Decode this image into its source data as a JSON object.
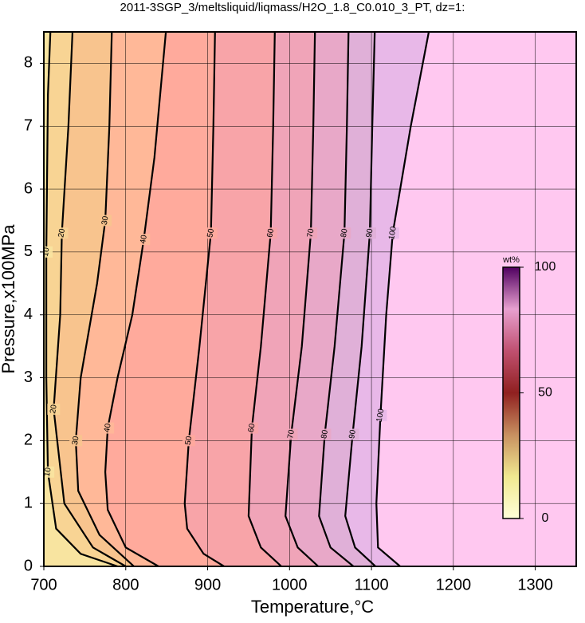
{
  "chart_data": {
    "type": "contour",
    "title": "2011-3SGP_3/meltsliquid/liqmass/H2O_1.8_C0.010_3_PT, dz=1:",
    "x_label": "Temperature,°C",
    "y_label": "Pressure,x100MPa",
    "xlim": [
      700,
      1350
    ],
    "ylim": [
      0,
      8.5
    ],
    "xticks": [
      700,
      800,
      900,
      1000,
      1100,
      1200,
      1300
    ],
    "yticks": [
      0,
      1,
      2,
      3,
      4,
      5,
      6,
      7,
      8
    ],
    "grid": true,
    "line_color": "#000000",
    "background": "#ffc8f0",
    "band_colors": [
      "#f8e4a0",
      "#f8d494",
      "#f8c48e",
      "#ffb898",
      "#ffaa9c",
      "#f8a4a8",
      "#f0a4b8",
      "#e8a8c8",
      "#e0b0d8",
      "#e8b8e8",
      "#ffc8f0"
    ],
    "series": [
      {
        "level": 10,
        "x": [
          790,
          745,
          715,
          705,
          703,
          703,
          705,
          708
        ],
        "values": [
          0,
          0.2,
          0.6,
          1.5,
          3,
          5,
          7.5,
          8.5
        ]
      },
      {
        "level": 20,
        "x": [
          800,
          760,
          725,
          712,
          720,
          722,
          730,
          735
        ],
        "values": [
          0,
          0.3,
          1,
          2.5,
          4,
          5.3,
          7,
          8.5
        ]
      },
      {
        "level": 30,
        "x": [
          810,
          768,
          742,
          739,
          745,
          765,
          775,
          780,
          783
        ],
        "values": [
          0,
          0.5,
          1.2,
          2,
          3,
          4.5,
          5.5,
          7,
          8.5
        ]
      },
      {
        "level": 40,
        "x": [
          840,
          800,
          778,
          775,
          778,
          790,
          808,
          822,
          835,
          849
        ],
        "values": [
          0,
          0.3,
          0.9,
          1.5,
          2.2,
          3,
          4,
          5.2,
          6.5,
          8.5
        ]
      },
      {
        "level": 50,
        "x": [
          920,
          895,
          875,
          872,
          877,
          890,
          904,
          907,
          909
        ],
        "values": [
          0,
          0.2,
          0.6,
          1,
          2,
          3.5,
          5.3,
          7,
          8.5
        ]
      },
      {
        "level": 60,
        "x": [
          990,
          965,
          950,
          954,
          965,
          977,
          980,
          982
        ],
        "values": [
          0,
          0.3,
          0.8,
          2.2,
          3.5,
          5.3,
          7,
          8.5
        ]
      },
      {
        "level": 70,
        "x": [
          1035,
          1010,
          995,
          1002,
          1015,
          1026,
          1029,
          1031
        ],
        "values": [
          0,
          0.3,
          0.8,
          2.1,
          3.5,
          5.3,
          7,
          8.5
        ]
      },
      {
        "level": 80,
        "x": [
          1078,
          1050,
          1036,
          1043,
          1055,
          1067,
          1070,
          1072
        ],
        "values": [
          0,
          0.3,
          0.8,
          2.1,
          3.5,
          5.3,
          7,
          8.5
        ]
      },
      {
        "level": 90,
        "x": [
          1105,
          1080,
          1068,
          1077,
          1088,
          1098,
          1101,
          1104
        ],
        "values": [
          0,
          0.3,
          0.8,
          2.1,
          3.5,
          5.3,
          7,
          8.5
        ]
      },
      {
        "level": 100,
        "x": [
          1135,
          1108,
          1106,
          1111,
          1118,
          1126,
          1148,
          1170
        ],
        "values": [
          0,
          0.3,
          1,
          2.4,
          4,
          5.3,
          7,
          8.5
        ]
      }
    ],
    "colorbar": {
      "label": "wt%",
      "ticks": [
        0,
        50,
        100
      ],
      "lim": [
        0,
        100
      ],
      "colors": [
        "#ffffd8",
        "#f0e890",
        "#c89060",
        "#902020",
        "#c05070",
        "#e8a0d0",
        "#500060"
      ]
    }
  }
}
